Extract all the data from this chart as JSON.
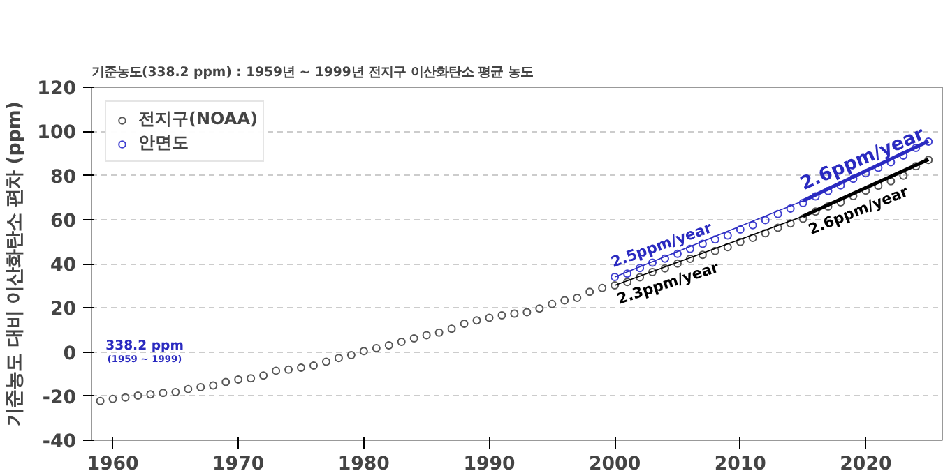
{
  "chart_data": {
    "type": "scatter",
    "title": "기준농도(338.2 ppm) : 1959년 ~ 1999년 전지구 이산화탄소 평균 농도",
    "ylabel": "기준농도 대비 이산화탄소 편차 (ppm)",
    "xlim": [
      1958.3,
      2026.1
    ],
    "ylim": [
      -40,
      120
    ],
    "xticks": [
      1960,
      1970,
      1980,
      1990,
      2000,
      2010,
      2020
    ],
    "yticks": [
      -40,
      -20,
      0,
      20,
      40,
      60,
      80,
      100,
      120
    ],
    "grid": "y",
    "legend": "top left",
    "annotations": [
      "338.2 ppm",
      "(1959 ~ 1999)"
    ],
    "series": [
      {
        "name": "전지구(NOAA)",
        "color": "#555555",
        "marker": "circle",
        "x": [
          1959,
          1960,
          1961,
          1962,
          1963,
          1964,
          1965,
          1966,
          1967,
          1968,
          1969,
          1970,
          1971,
          1972,
          1973,
          1974,
          1975,
          1976,
          1977,
          1978,
          1979,
          1980,
          1981,
          1982,
          1983,
          1984,
          1985,
          1986,
          1987,
          1988,
          1989,
          1990,
          1991,
          1992,
          1993,
          1994,
          1995,
          1996,
          1997,
          1998,
          1999,
          2000,
          2001,
          2002,
          2003,
          2004,
          2005,
          2006,
          2007,
          2008,
          2009,
          2010,
          2011,
          2012,
          2013,
          2014,
          2015,
          2016,
          2017,
          2018,
          2019,
          2020,
          2021,
          2022,
          2023,
          2024,
          2025
        ],
        "values": [
          -22.2,
          -21.3,
          -20.6,
          -19.8,
          -19.2,
          -18.6,
          -18.2,
          -16.8,
          -16.0,
          -15.2,
          -13.6,
          -12.5,
          -11.9,
          -10.7,
          -8.5,
          -8.0,
          -7.1,
          -6.2,
          -4.4,
          -2.8,
          -1.4,
          0.4,
          1.7,
          3.0,
          4.6,
          6.2,
          7.6,
          8.8,
          10.5,
          12.8,
          14.3,
          15.5,
          16.6,
          17.4,
          18.0,
          19.7,
          21.7,
          23.4,
          24.5,
          27.3,
          29.0,
          30.2,
          31.7,
          33.8,
          36.2,
          37.9,
          40.1,
          42.2,
          44.0,
          45.8,
          47.5,
          49.9,
          51.7,
          53.8,
          56.3,
          58.3,
          60.4,
          63.6,
          65.9,
          67.8,
          70.7,
          73.1,
          75.3,
          77.4,
          79.9,
          84.2,
          87.0
        ]
      },
      {
        "name": "안면도",
        "color": "#4040d0",
        "marker": "circle",
        "x": [
          2000,
          2001,
          2002,
          2003,
          2004,
          2005,
          2006,
          2007,
          2008,
          2009,
          2010,
          2011,
          2012,
          2013,
          2014,
          2015,
          2016,
          2017,
          2018,
          2019,
          2020,
          2021,
          2022,
          2023,
          2024,
          2025
        ],
        "values": [
          34.0,
          35.5,
          38.0,
          40.5,
          42.3,
          44.5,
          46.7,
          49.0,
          51.0,
          52.8,
          55.5,
          57.5,
          59.8,
          62.5,
          65.0,
          67.5,
          70.5,
          73.0,
          75.5,
          78.5,
          81.0,
          83.5,
          86.0,
          89.0,
          92.5,
          95.3
        ]
      },
      {
        "type": "line",
        "name": "2.3ppm/year",
        "color": "#000000",
        "x": [
          2000,
          2015
        ],
        "values": [
          30.2,
          61.5
        ]
      },
      {
        "type": "line",
        "name": "2.5ppm/year",
        "color": "#2a2ac0",
        "x": [
          2000,
          2015
        ],
        "values": [
          34.0,
          68.5
        ]
      },
      {
        "type": "line",
        "name": "2.6ppm/year",
        "color": "#000000",
        "x": [
          2015,
          2025
        ],
        "values": [
          61.5,
          87.3
        ]
      },
      {
        "type": "line",
        "name": "2.6ppm/year",
        "color": "#2a2ac0",
        "x": [
          2015,
          2025
        ],
        "values": [
          68.5,
          95.6
        ]
      }
    ]
  }
}
